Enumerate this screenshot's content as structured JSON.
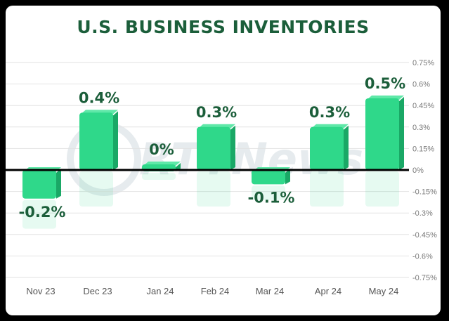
{
  "chart_data": {
    "type": "bar",
    "title": "U.S. BUSINESS INVENTORIES",
    "categories": [
      "Nov 23",
      "Dec 23",
      "Jan 24",
      "Feb 24",
      "Mar 24",
      "Apr 24",
      "May 24"
    ],
    "values": [
      -0.2,
      0.4,
      0,
      0.3,
      -0.1,
      0.3,
      0.5
    ],
    "data_labels": [
      "-0.2%",
      "0.4%",
      "0%",
      "0.3%",
      "-0.1%",
      "0.3%",
      "0.5%"
    ],
    "ylim": [
      -0.75,
      0.75
    ],
    "yticks": [
      0.75,
      0.6,
      0.45,
      0.3,
      0.15,
      0,
      -0.15,
      -0.3,
      -0.45,
      -0.6,
      -0.75
    ],
    "ytick_labels": [
      "0.75%",
      "0.6%",
      "0.45%",
      "0.3%",
      "0.15%",
      "0%",
      "-0.15%",
      "-0.3%",
      "-0.45%",
      "-0.6%",
      "-0.75%"
    ],
    "y_axis_position": "right",
    "grid": true,
    "colors": {
      "bar": "#2fd88a",
      "bar_dark": "#1aa866",
      "label": "#1b5e3a",
      "zero_line": "#000000",
      "grid": "#e2e2e2"
    }
  },
  "watermark": "RTTNews"
}
